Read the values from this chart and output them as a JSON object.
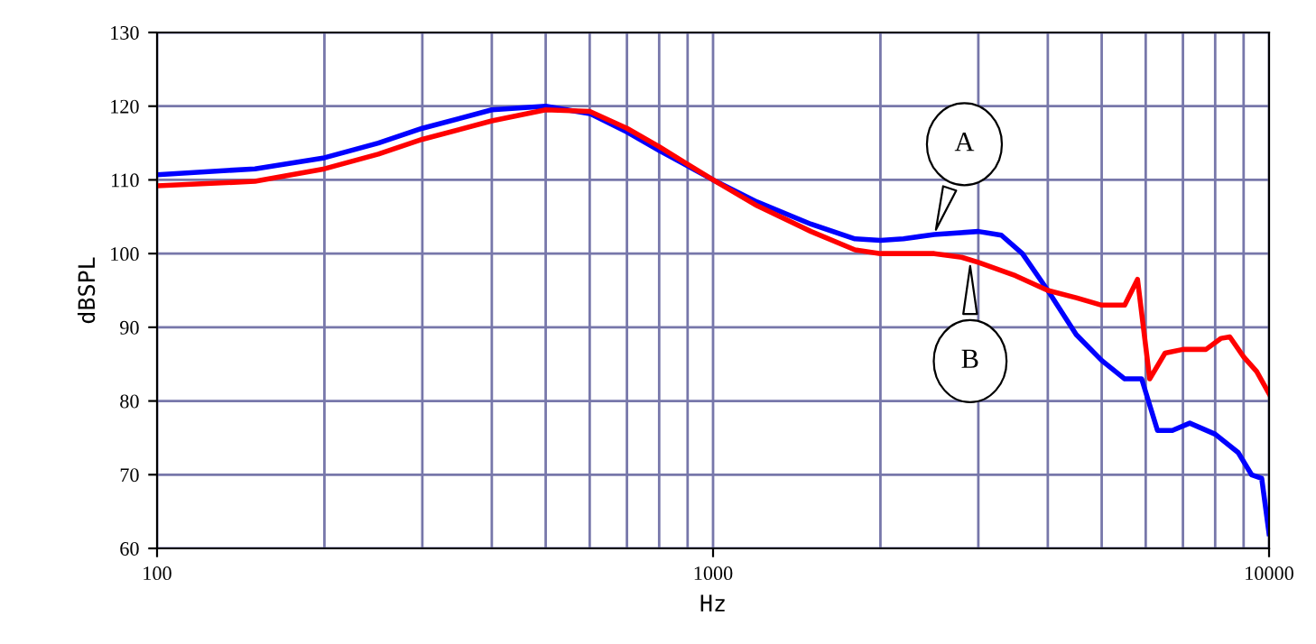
{
  "chart_data": {
    "type": "line",
    "xlabel": "Hz",
    "ylabel": "dBSPL",
    "log": "x",
    "grid": true,
    "legend": false,
    "marker": "none",
    "line_style": "solid",
    "xlim": [
      100,
      10000
    ],
    "ylim": [
      60,
      130
    ],
    "xticks": [
      100,
      1000,
      10000
    ],
    "yticks": [
      60,
      70,
      80,
      90,
      100,
      110,
      120,
      130
    ],
    "series": [
      {
        "color": "#0000ff",
        "x": [
          100,
          150,
          200,
          250,
          300,
          400,
          500,
          600,
          700,
          800,
          1000,
          1200,
          1500,
          1800,
          2000,
          2200,
          2500,
          3000,
          3300,
          3600,
          4000,
          4500,
          5000,
          5500,
          5900,
          6300,
          6700,
          7200,
          8000,
          8800,
          9300,
          9700,
          10000
        ],
        "values": [
          110.7,
          111.5,
          113,
          115,
          117,
          119.5,
          120,
          119,
          116.5,
          114,
          110,
          107,
          104,
          102,
          101.8,
          102,
          102.6,
          103,
          102.5,
          100,
          95,
          89,
          85.5,
          83,
          83,
          76,
          76,
          77,
          75.5,
          73,
          70,
          69.5,
          62
        ]
      },
      {
        "color": "#ff0000",
        "x": [
          100,
          150,
          200,
          250,
          300,
          400,
          500,
          600,
          700,
          800,
          1000,
          1200,
          1500,
          1800,
          2000,
          2500,
          2800,
          3000,
          3500,
          4000,
          4500,
          5000,
          5500,
          5800,
          6100,
          6500,
          7000,
          7700,
          8200,
          8500,
          9000,
          9500,
          10000
        ],
        "values": [
          109.2,
          109.8,
          111.5,
          113.5,
          115.5,
          118,
          119.5,
          119.3,
          117,
          114.5,
          110,
          106.5,
          103,
          100.5,
          100,
          100,
          99.5,
          98.8,
          97,
          95,
          94,
          93,
          93,
          96.5,
          83,
          86.5,
          87,
          87,
          88.5,
          88.7,
          86,
          84,
          81
        ]
      }
    ],
    "annotations": [
      {
        "text": "A",
        "x": 2500,
        "y": 102.6
      },
      {
        "text": "B",
        "x": 2900,
        "y": 99
      }
    ]
  }
}
